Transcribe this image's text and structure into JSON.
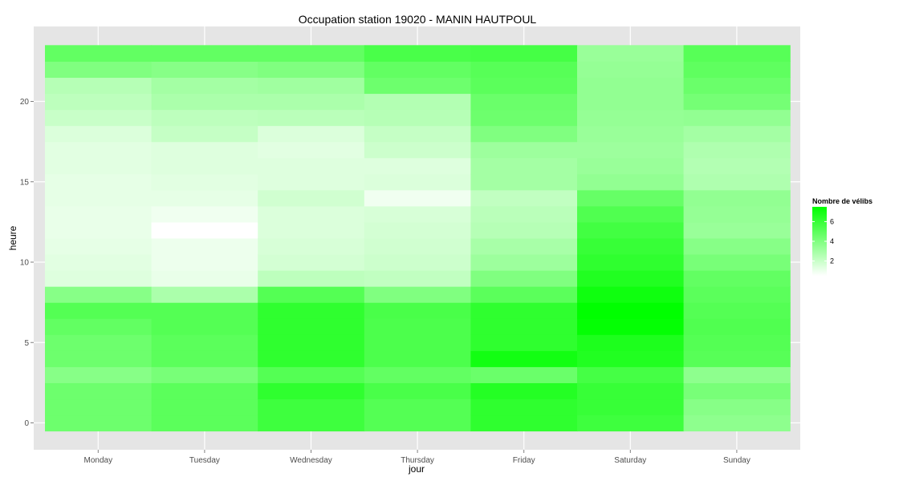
{
  "chart_data": {
    "type": "heatmap",
    "title": "Occupation station 19020 - MANIN HAUTPOUL",
    "xlabel": "jour",
    "ylabel": "heure",
    "categories": [
      "Monday",
      "Tuesday",
      "Wednesday",
      "Thursday",
      "Friday",
      "Saturday",
      "Sunday"
    ],
    "y": [
      0,
      1,
      2,
      3,
      4,
      5,
      6,
      7,
      8,
      9,
      10,
      11,
      12,
      13,
      14,
      15,
      16,
      17,
      18,
      19,
      20,
      21,
      22,
      23
    ],
    "y_ticks": [
      0,
      5,
      10,
      15,
      20
    ],
    "values": [
      [
        4.5,
        4.5,
        4.5,
        3.8,
        4.5,
        4.5,
        4.8,
        5.2,
        3.8,
        1.4,
        1.3,
        1.2,
        1.1,
        1.1,
        1.2,
        1.2,
        1.3,
        1.3,
        1.5,
        2.0,
        2.3,
        2.5,
        4.0,
        4.8
      ],
      [
        5.0,
        5.0,
        5.0,
        4.2,
        5.0,
        5.0,
        5.2,
        5.2,
        2.8,
        1.1,
        1.0,
        1.0,
        0.5,
        0.9,
        1.2,
        1.3,
        1.4,
        1.4,
        2.1,
        2.3,
        2.8,
        3.0,
        3.8,
        4.8
      ],
      [
        5.8,
        5.8,
        6.2,
        5.2,
        6.2,
        6.2,
        6.2,
        6.2,
        5.2,
        2.3,
        1.7,
        1.6,
        1.5,
        1.5,
        1.8,
        1.4,
        1.4,
        1.3,
        1.5,
        2.4,
        2.8,
        3.1,
        4.0,
        4.8
      ],
      [
        5.2,
        5.2,
        5.5,
        4.8,
        5.4,
        5.4,
        5.4,
        5.5,
        4.0,
        2.2,
        1.9,
        1.8,
        1.7,
        1.6,
        0.9,
        1.5,
        1.4,
        1.9,
        2.1,
        2.5,
        2.6,
        4.5,
        4.8,
        5.5
      ],
      [
        6.2,
        6.2,
        6.5,
        4.6,
        7.0,
        6.2,
        6.2,
        6.2,
        5.0,
        4.0,
        3.2,
        2.9,
        2.5,
        2.4,
        2.2,
        3.0,
        3.0,
        3.2,
        4.0,
        4.5,
        4.6,
        5.0,
        5.1,
        5.6
      ],
      [
        5.8,
        6.0,
        6.0,
        5.6,
        6.6,
        6.7,
        7.4,
        7.5,
        7.1,
        6.6,
        6.2,
        6.0,
        5.7,
        5.3,
        4.7,
        3.5,
        3.3,
        3.2,
        3.3,
        3.4,
        3.5,
        3.5,
        3.4,
        3.3
      ],
      [
        3.6,
        3.8,
        4.2,
        3.6,
        5.1,
        5.2,
        5.3,
        5.2,
        5.0,
        4.8,
        4.2,
        3.8,
        3.3,
        3.4,
        3.5,
        2.7,
        2.6,
        2.7,
        3.0,
        3.5,
        4.3,
        4.6,
        4.9,
        5.1
      ]
    ],
    "color_scale": {
      "low": "#ffffff",
      "high": "#00ff00",
      "min": 0.5,
      "max": 7.5
    },
    "legend": {
      "title": "Nombre de vélibs",
      "ticks": [
        2,
        4,
        6
      ],
      "position": "right"
    },
    "grid": true,
    "panel_color": "#e5e5e5",
    "grid_color": "#ffffff"
  }
}
